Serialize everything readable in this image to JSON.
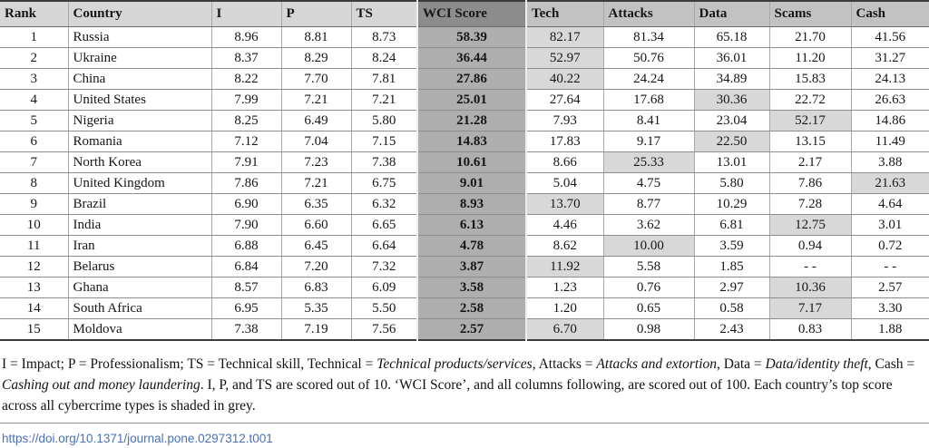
{
  "table": {
    "columns": [
      {
        "key": "rank",
        "label": "Rank"
      },
      {
        "key": "country",
        "label": "Country"
      },
      {
        "key": "i",
        "label": "I"
      },
      {
        "key": "p",
        "label": "P"
      },
      {
        "key": "ts",
        "label": "TS"
      },
      {
        "key": "wci",
        "label": "WCI Score"
      },
      {
        "key": "tech",
        "label": "Tech"
      },
      {
        "key": "attacks",
        "label": "Attacks"
      },
      {
        "key": "data",
        "label": "Data"
      },
      {
        "key": "scams",
        "label": "Scams"
      },
      {
        "key": "cash",
        "label": "Cash"
      }
    ],
    "rows": [
      {
        "rank": "1",
        "country": "Russia",
        "i": "8.96",
        "p": "8.81",
        "ts": "8.73",
        "wci": "58.39",
        "tech": "82.17",
        "attacks": "81.34",
        "data": "65.18",
        "scams": "21.70",
        "cash": "41.56",
        "top": "tech"
      },
      {
        "rank": "2",
        "country": "Ukraine",
        "i": "8.37",
        "p": "8.29",
        "ts": "8.24",
        "wci": "36.44",
        "tech": "52.97",
        "attacks": "50.76",
        "data": "36.01",
        "scams": "11.20",
        "cash": "31.27",
        "top": "tech"
      },
      {
        "rank": "3",
        "country": "China",
        "i": "8.22",
        "p": "7.70",
        "ts": "7.81",
        "wci": "27.86",
        "tech": "40.22",
        "attacks": "24.24",
        "data": "34.89",
        "scams": "15.83",
        "cash": "24.13",
        "top": "tech"
      },
      {
        "rank": "4",
        "country": "United States",
        "i": "7.99",
        "p": "7.21",
        "ts": "7.21",
        "wci": "25.01",
        "tech": "27.64",
        "attacks": "17.68",
        "data": "30.36",
        "scams": "22.72",
        "cash": "26.63",
        "top": "data"
      },
      {
        "rank": "5",
        "country": "Nigeria",
        "i": "8.25",
        "p": "6.49",
        "ts": "5.80",
        "wci": "21.28",
        "tech": "7.93",
        "attacks": "8.41",
        "data": "23.04",
        "scams": "52.17",
        "cash": "14.86",
        "top": "scams"
      },
      {
        "rank": "6",
        "country": "Romania",
        "i": "7.12",
        "p": "7.04",
        "ts": "7.15",
        "wci": "14.83",
        "tech": "17.83",
        "attacks": "9.17",
        "data": "22.50",
        "scams": "13.15",
        "cash": "11.49",
        "top": "data"
      },
      {
        "rank": "7",
        "country": "North Korea",
        "i": "7.91",
        "p": "7.23",
        "ts": "7.38",
        "wci": "10.61",
        "tech": "8.66",
        "attacks": "25.33",
        "data": "13.01",
        "scams": "2.17",
        "cash": "3.88",
        "top": "attacks"
      },
      {
        "rank": "8",
        "country": "United Kingdom",
        "i": "7.86",
        "p": "7.21",
        "ts": "6.75",
        "wci": "9.01",
        "tech": "5.04",
        "attacks": "4.75",
        "data": "5.80",
        "scams": "7.86",
        "cash": "21.63",
        "top": "cash"
      },
      {
        "rank": "9",
        "country": "Brazil",
        "i": "6.90",
        "p": "6.35",
        "ts": "6.32",
        "wci": "8.93",
        "tech": "13.70",
        "attacks": "8.77",
        "data": "10.29",
        "scams": "7.28",
        "cash": "4.64",
        "top": "tech"
      },
      {
        "rank": "10",
        "country": "India",
        "i": "7.90",
        "p": "6.60",
        "ts": "6.65",
        "wci": "6.13",
        "tech": "4.46",
        "attacks": "3.62",
        "data": "6.81",
        "scams": "12.75",
        "cash": "3.01",
        "top": "scams"
      },
      {
        "rank": "11",
        "country": "Iran",
        "i": "6.88",
        "p": "6.45",
        "ts": "6.64",
        "wci": "4.78",
        "tech": "8.62",
        "attacks": "10.00",
        "data": "3.59",
        "scams": "0.94",
        "cash": "0.72",
        "top": "attacks"
      },
      {
        "rank": "12",
        "country": "Belarus",
        "i": "6.84",
        "p": "7.20",
        "ts": "7.32",
        "wci": "3.87",
        "tech": "11.92",
        "attacks": "5.58",
        "data": "1.85",
        "scams": "- -",
        "cash": "- -",
        "top": "tech"
      },
      {
        "rank": "13",
        "country": "Ghana",
        "i": "8.57",
        "p": "6.83",
        "ts": "6.09",
        "wci": "3.58",
        "tech": "1.23",
        "attacks": "0.76",
        "data": "2.97",
        "scams": "10.36",
        "cash": "2.57",
        "top": "scams"
      },
      {
        "rank": "14",
        "country": "South Africa",
        "i": "6.95",
        "p": "5.35",
        "ts": "5.50",
        "wci": "2.58",
        "tech": "1.20",
        "attacks": "0.65",
        "data": "0.58",
        "scams": "7.17",
        "cash": "3.30",
        "top": "scams"
      },
      {
        "rank": "15",
        "country": "Moldova",
        "i": "7.38",
        "p": "7.19",
        "ts": "7.56",
        "wci": "2.57",
        "tech": "6.70",
        "attacks": "0.98",
        "data": "2.43",
        "scams": "0.83",
        "cash": "1.88",
        "top": "tech"
      }
    ]
  },
  "footnote": {
    "segments": [
      {
        "text": "I = Impact; P = Professionalism; TS = Technical skill, Technical = ",
        "italic": false
      },
      {
        "text": "Technical products/services",
        "italic": true
      },
      {
        "text": ", Attacks = ",
        "italic": false
      },
      {
        "text": "Attacks and extortion",
        "italic": true
      },
      {
        "text": ", Data = ",
        "italic": false
      },
      {
        "text": "Data/identity theft",
        "italic": true
      },
      {
        "text": ", Cash = ",
        "italic": false
      },
      {
        "text": "Cashing out and money laundering",
        "italic": true
      },
      {
        "text": ". I, P, and TS are scored out of 10. ‘WCI Score’, and all columns following, are scored out of 100. Each country’s top score across all cybercrime types is shaded in grey.",
        "italic": false
      }
    ]
  },
  "link": {
    "text": "https://doi.org/10.1371/journal.pone.0297312.t001"
  },
  "colors": {
    "header_light": "#d6d6d6",
    "header_mid": "#c2c2c2",
    "wci_header": "#8c8c8c",
    "wci_cell": "#aeaeae",
    "top_score_shade": "#d8d8d8",
    "link_blue": "#4a70b8"
  }
}
